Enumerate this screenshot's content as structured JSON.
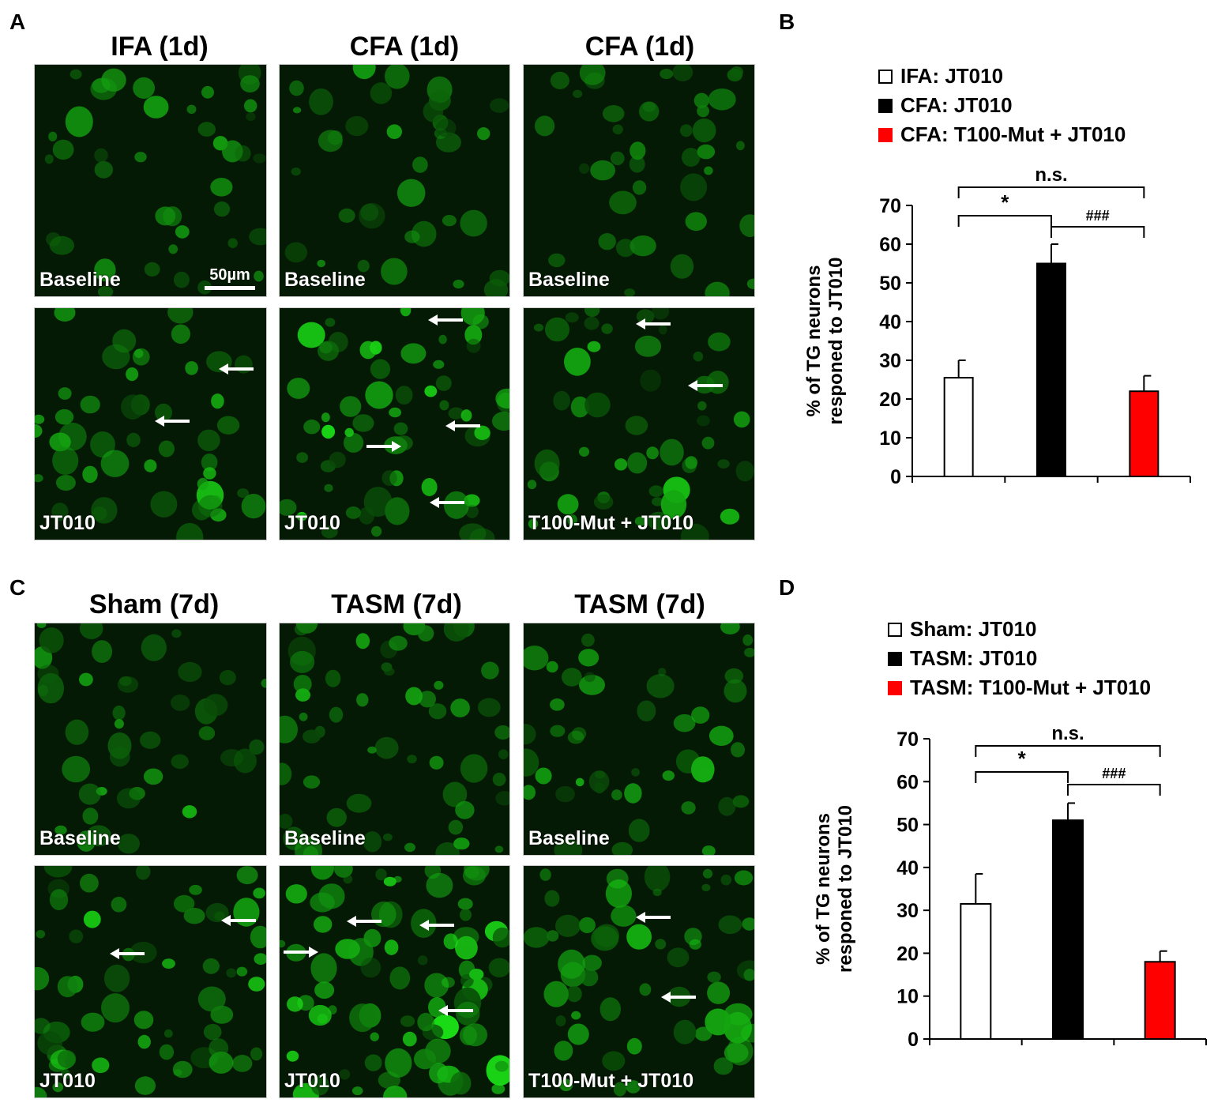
{
  "panels": {
    "A": {
      "letter": "A",
      "columns": [
        {
          "title": "IFA (1d)",
          "top_tag": "Baseline",
          "bottom_tag": "JT010"
        },
        {
          "title": "CFA (1d)",
          "top_tag": "Baseline",
          "bottom_tag": "JT010"
        },
        {
          "title": "CFA (1d)",
          "top_tag": "Baseline",
          "bottom_tag": "T100-Mut + JT010"
        }
      ],
      "scalebar": "50µm"
    },
    "B": {
      "letter": "B"
    },
    "C": {
      "letter": "C",
      "columns": [
        {
          "title": "Sham (7d)",
          "top_tag": "Baseline",
          "bottom_tag": "JT010"
        },
        {
          "title": "TASM (7d)",
          "top_tag": "Baseline",
          "bottom_tag": "JT010"
        },
        {
          "title": "TASM (7d)",
          "top_tag": "Baseline",
          "bottom_tag": "T100-Mut + JT010"
        }
      ]
    },
    "D": {
      "letter": "D"
    }
  },
  "chart_data": [
    {
      "type": "bar",
      "panel": "B",
      "legend": [
        "IFA: JT010",
        "CFA: JT010",
        "CFA: T100-Mut + JT010"
      ],
      "colors": [
        "#ffffff",
        "#000000",
        "#ff0000"
      ],
      "values": [
        25.5,
        55,
        22
      ],
      "errors": [
        4.5,
        5,
        4
      ],
      "ylabel": "% of TG neurons responed to JT010",
      "ylim": [
        0,
        70
      ],
      "yticks": [
        0,
        10,
        20,
        30,
        40,
        50,
        60,
        70
      ],
      "annotations": [
        {
          "label": "n.s.",
          "from": 0,
          "to": 2
        },
        {
          "label": "*",
          "from": 0,
          "to": 1
        },
        {
          "label": "###",
          "from": 1,
          "to": 2
        }
      ]
    },
    {
      "type": "bar",
      "panel": "D",
      "legend": [
        "Sham: JT010",
        "TASM: JT010",
        "TASM: T100-Mut + JT010"
      ],
      "colors": [
        "#ffffff",
        "#000000",
        "#ff0000"
      ],
      "values": [
        31.5,
        51,
        18
      ],
      "errors": [
        7,
        4,
        2.5
      ],
      "ylabel": "% of TG neurons responed to JT010",
      "ylim": [
        0,
        70
      ],
      "yticks": [
        0,
        10,
        20,
        30,
        40,
        50,
        60,
        70
      ],
      "annotations": [
        {
          "label": "n.s.",
          "from": 0,
          "to": 2
        },
        {
          "label": "*",
          "from": 0,
          "to": 1
        },
        {
          "label": "###",
          "from": 1,
          "to": 2
        }
      ]
    }
  ]
}
